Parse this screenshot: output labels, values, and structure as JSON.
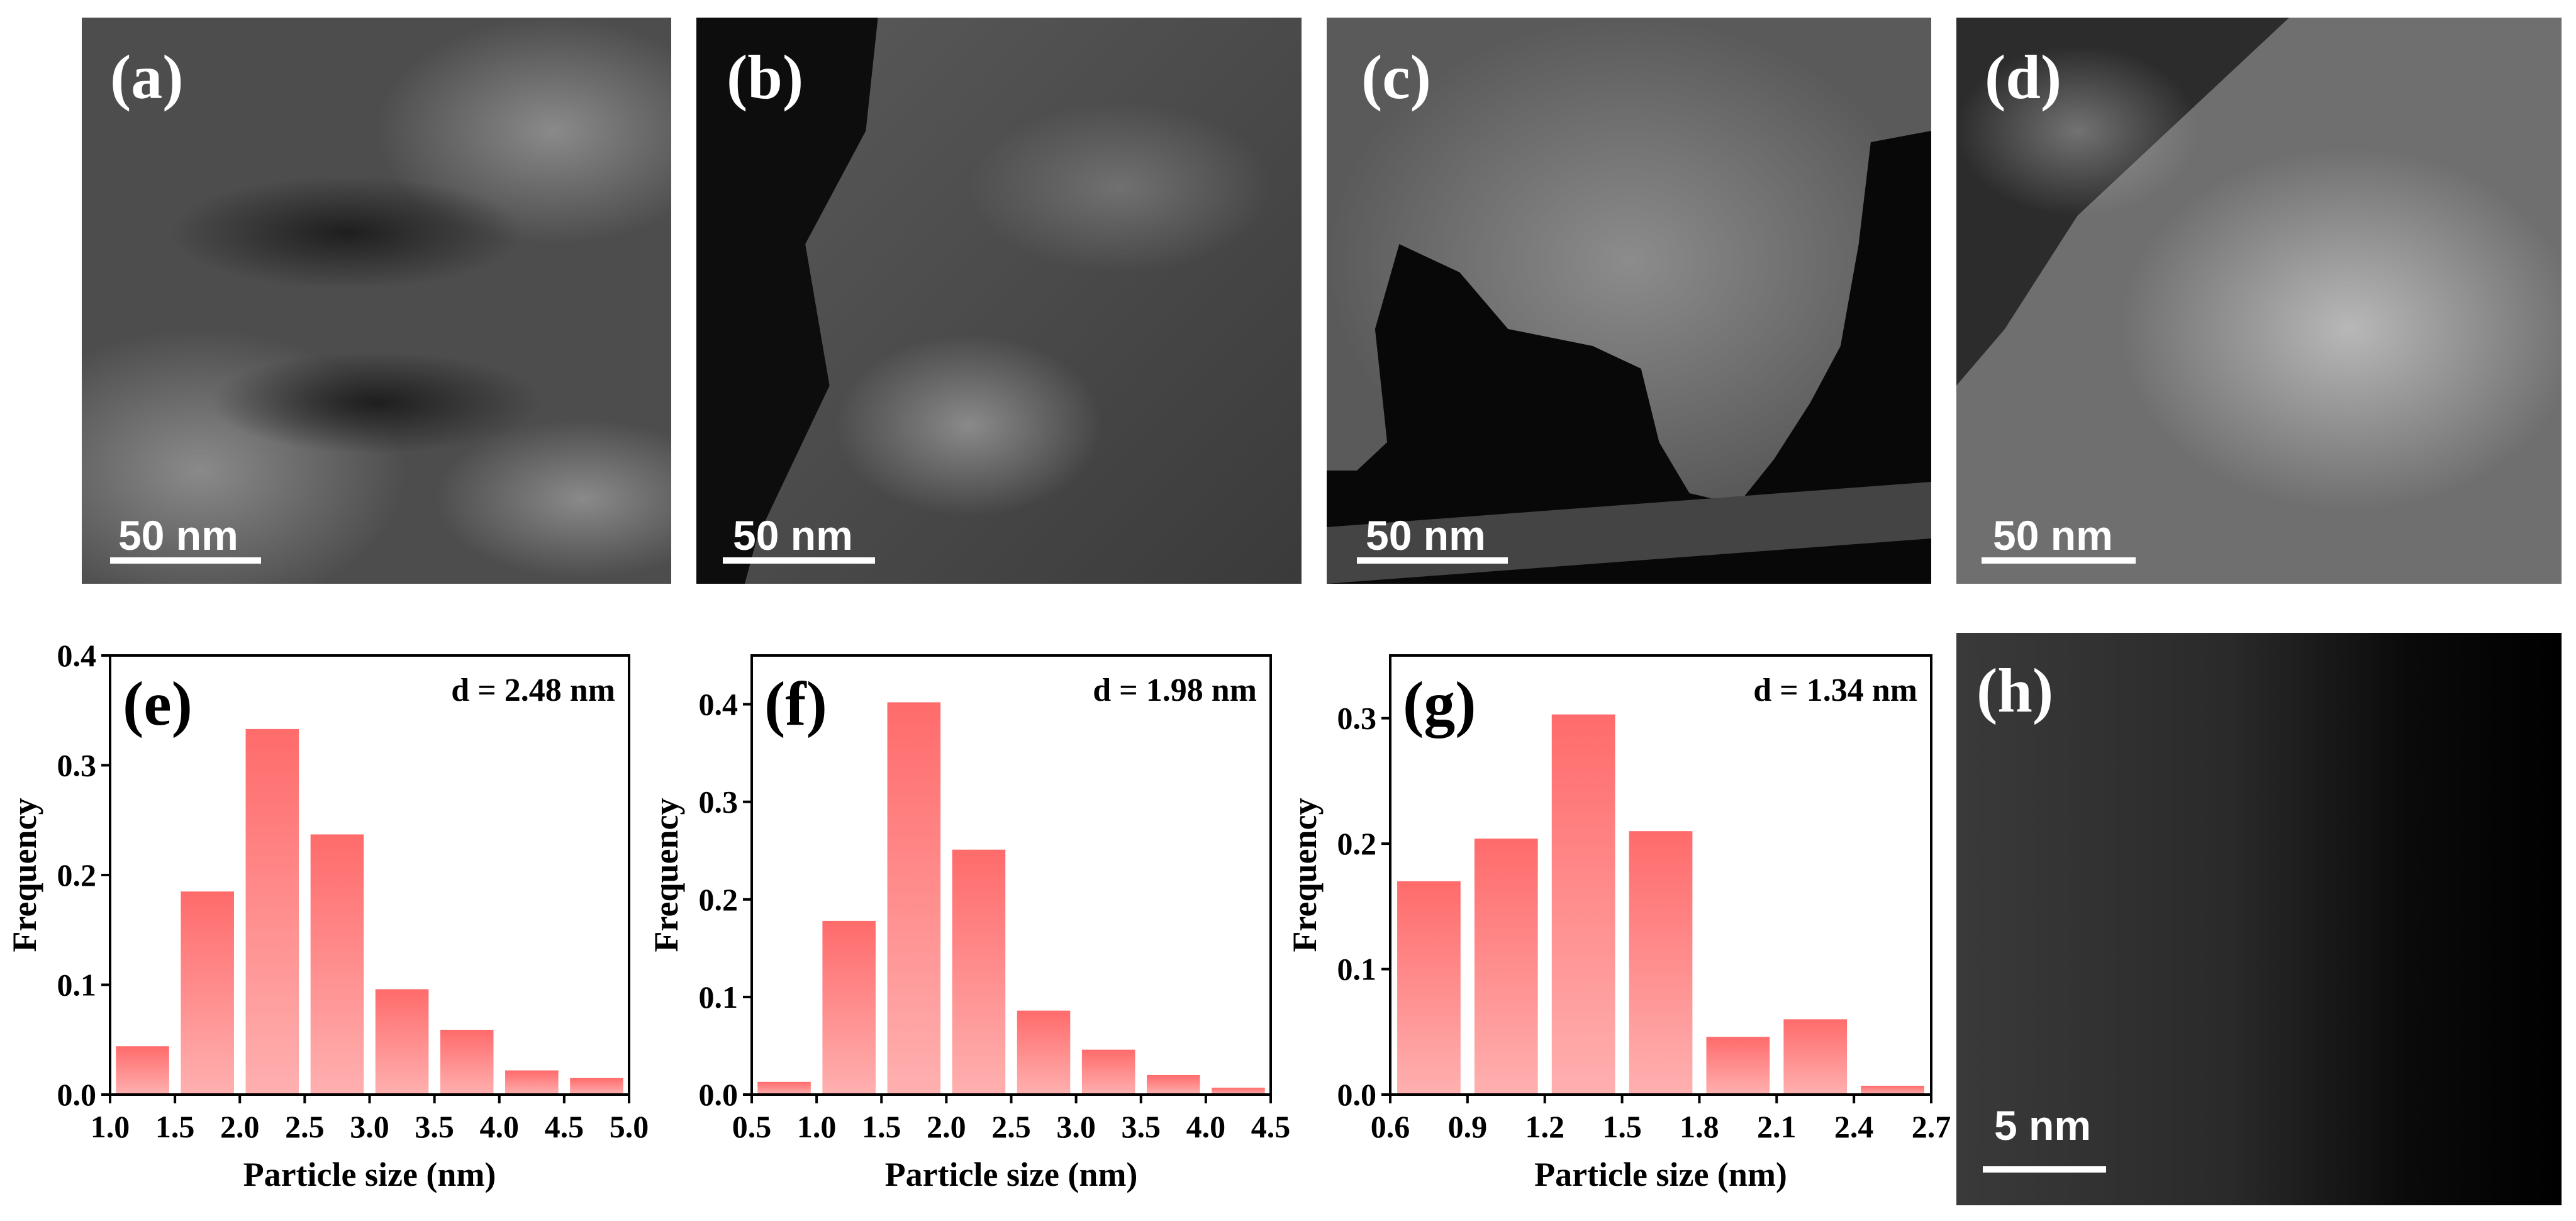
{
  "colors": {
    "bar_top": "#ff6b6b",
    "bar_bottom": "#ffb0b0",
    "axis": "#000000",
    "label": "#ffffff"
  },
  "micrographs": [
    {
      "label": "(a)",
      "scale": "50 nm"
    },
    {
      "label": "(b)",
      "scale": "50 nm"
    },
    {
      "label": "(c)",
      "scale": "50 nm"
    },
    {
      "label": "(d)",
      "scale": "50 nm"
    },
    {
      "label": "(h)",
      "scale": "5 nm"
    }
  ],
  "chart_data": [
    {
      "type": "bar",
      "panel": "(e)",
      "annotation": "d = 2.48 nm",
      "xlabel": "Particle size (nm)",
      "ylabel": "Frequency",
      "xlim": [
        1.0,
        5.0
      ],
      "ylim": [
        0,
        0.4
      ],
      "xticks": [
        "1.0",
        "1.5",
        "2.0",
        "2.5",
        "3.0",
        "3.5",
        "4.0",
        "4.5",
        "5.0"
      ],
      "yticks": [
        "0.0",
        "0.1",
        "0.2",
        "0.3",
        "0.4"
      ],
      "categories": [
        1.25,
        1.75,
        2.25,
        2.75,
        3.25,
        3.75,
        4.25,
        4.75
      ],
      "bin_width": 0.5,
      "values": [
        0.044,
        0.185,
        0.333,
        0.237,
        0.096,
        0.059,
        0.022,
        0.015
      ]
    },
    {
      "type": "bar",
      "panel": "(f)",
      "annotation": "d = 1.98 nm",
      "xlabel": "Particle size (nm)",
      "ylabel": "Frequency",
      "xlim": [
        0.5,
        4.5
      ],
      "ylim": [
        0,
        0.45
      ],
      "xticks": [
        "0.5",
        "1.0",
        "1.5",
        "2.0",
        "2.5",
        "3.0",
        "3.5",
        "4.0",
        "4.5"
      ],
      "yticks": [
        "0.0",
        "0.1",
        "0.2",
        "0.3",
        "0.4"
      ],
      "categories": [
        0.75,
        1.25,
        1.75,
        2.25,
        2.75,
        3.25,
        3.75,
        4.25
      ],
      "bin_width": 0.5,
      "values": [
        0.013,
        0.178,
        0.402,
        0.251,
        0.086,
        0.046,
        0.02,
        0.007
      ]
    },
    {
      "type": "bar",
      "panel": "(g)",
      "annotation": "d = 1.34 nm",
      "xlabel": "Particle size (nm)",
      "ylabel": "Frequency",
      "xlim": [
        0.6,
        2.7
      ],
      "ylim": [
        0,
        0.35
      ],
      "xticks": [
        "0.6",
        "0.9",
        "1.2",
        "1.5",
        "1.8",
        "2.1",
        "2.4",
        "2.7"
      ],
      "yticks": [
        "0.0",
        "0.1",
        "0.2",
        "0.3"
      ],
      "categories": [
        0.75,
        1.05,
        1.35,
        1.65,
        1.95,
        2.25,
        2.55
      ],
      "bin_width": 0.3,
      "values": [
        0.17,
        0.204,
        0.303,
        0.21,
        0.046,
        0.06,
        0.007
      ]
    }
  ]
}
